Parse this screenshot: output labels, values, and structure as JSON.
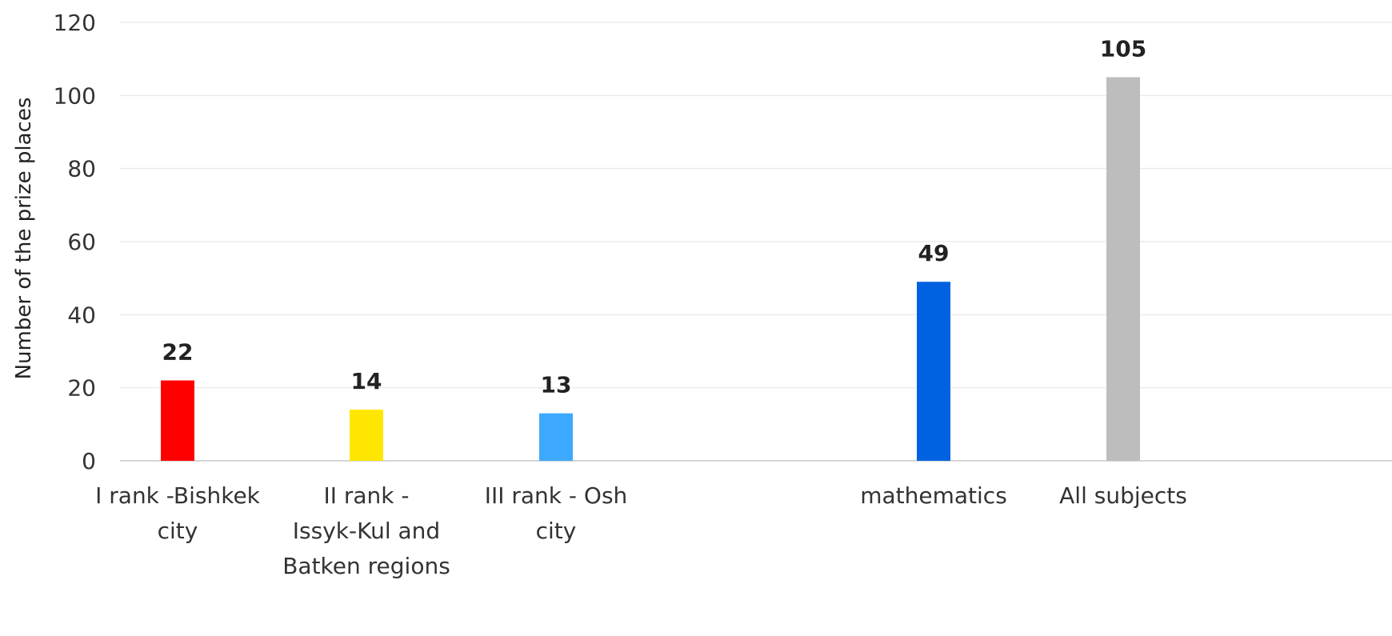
{
  "chart_data": {
    "type": "bar",
    "categories": [
      [
        "I rank -Bishkek",
        "city"
      ],
      [
        "II rank -",
        "Issyk-Kul and",
        "Batken regions"
      ],
      [
        "III rank - Osh",
        "city"
      ],
      [
        "mathematics"
      ],
      [
        "All subjects"
      ]
    ],
    "values": [
      22,
      14,
      13,
      49,
      105
    ],
    "colors": [
      "#ff0000",
      "#ffe600",
      "#3da9ff",
      "#0062e0",
      "#bdbdbd"
    ],
    "ylabel": "Number of the prize places",
    "xlabel": "",
    "title": "",
    "ylim": [
      0,
      120
    ],
    "yticks": [
      0,
      20,
      40,
      60,
      80,
      100,
      120
    ],
    "grid": true,
    "legend": "none"
  }
}
